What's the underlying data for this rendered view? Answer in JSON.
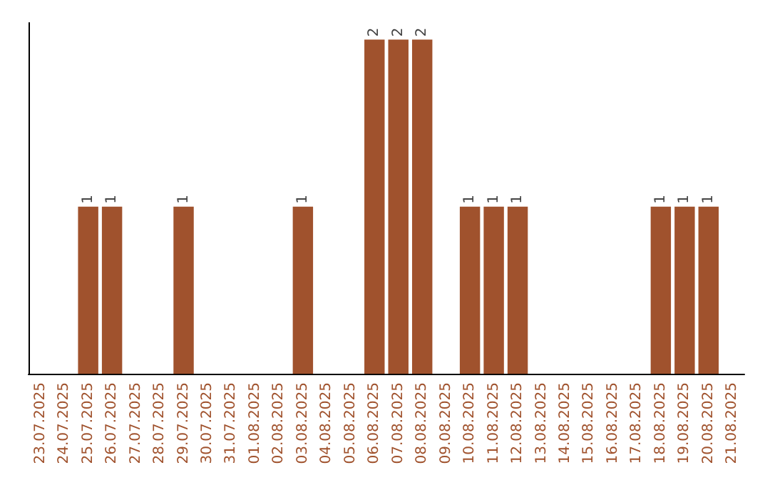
{
  "chart_data": {
    "type": "bar",
    "categories": [
      "23.07.2025",
      "24.07.2025",
      "25.07.2025",
      "26.07.2025",
      "27.07.2025",
      "28.07.2025",
      "29.07.2025",
      "30.07.2025",
      "31.07.2025",
      "01.08.2025",
      "02.08.2025",
      "03.08.2025",
      "04.08.2025",
      "05.08.2025",
      "06.08.2025",
      "07.08.2025",
      "08.08.2025",
      "09.08.2025",
      "10.08.2025",
      "11.08.2025",
      "12.08.2025",
      "13.08.2025",
      "14.08.2025",
      "15.08.2025",
      "16.08.2025",
      "17.08.2025",
      "18.08.2025",
      "19.08.2025",
      "20.08.2025",
      "21.08.2025"
    ],
    "values": [
      0,
      0,
      1,
      1,
      0,
      0,
      1,
      0,
      0,
      0,
      0,
      1,
      0,
      0,
      2,
      2,
      2,
      0,
      1,
      1,
      1,
      0,
      0,
      0,
      0,
      0,
      1,
      1,
      1,
      0
    ],
    "value_labels": [
      null,
      null,
      "1",
      "1",
      null,
      null,
      "1",
      null,
      null,
      null,
      null,
      "1",
      null,
      null,
      "2",
      "2",
      "2",
      null,
      "1",
      "1",
      "1",
      null,
      null,
      null,
      null,
      null,
      "1",
      "1",
      "1",
      null
    ],
    "color": "#a0522d",
    "ylim": [
      0,
      2.1
    ],
    "tick_labels": "x",
    "grid": false
  }
}
